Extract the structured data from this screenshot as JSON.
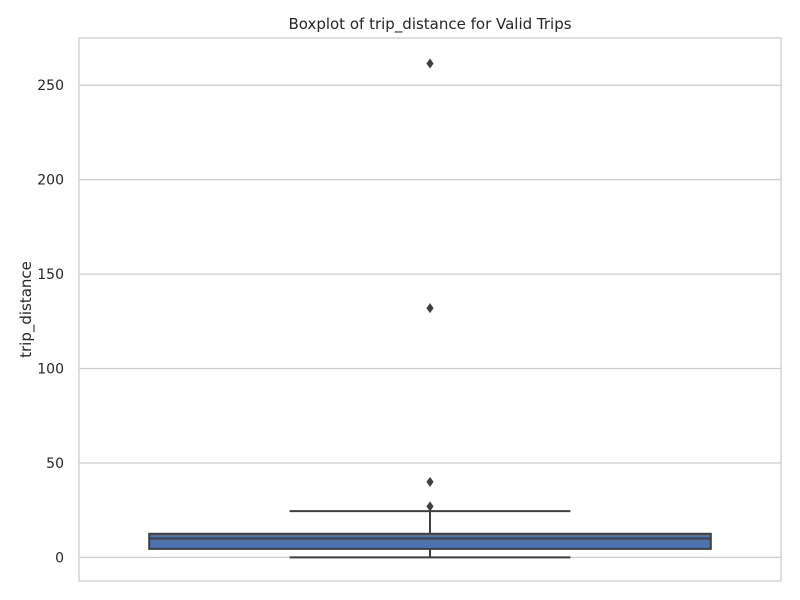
{
  "chart_data": {
    "type": "box",
    "title": "Boxplot of trip_distance for Valid Trips",
    "xlabel": "",
    "ylabel": "trip_distance",
    "ylim": [
      -12.5,
      275
    ],
    "yticks": [
      0,
      50,
      100,
      150,
      200,
      250
    ],
    "grid": true,
    "box": {
      "whisker_low": 0,
      "q1": 4.5,
      "median": 10,
      "q3": 12.5,
      "whisker_high": 24.5,
      "outliers": [
        27,
        40,
        132,
        261.5
      ]
    },
    "colors": {
      "box_fill": "#4c72b0",
      "line": "#3f3f3f",
      "grid": "#cccccc",
      "frame": "#cccccc"
    }
  }
}
